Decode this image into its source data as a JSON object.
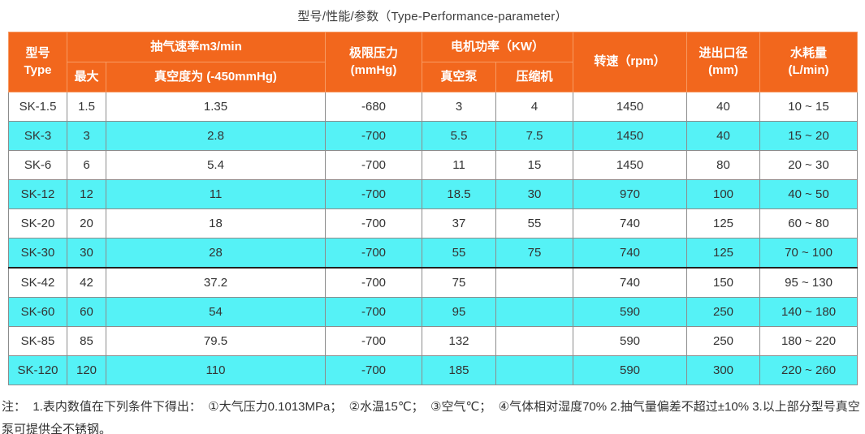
{
  "title": "型号/性能/参数（Type-Performance-parameter）",
  "colors": {
    "header_bg": "#f2671d",
    "header_text": "#ffffff",
    "header_border": "#f79a62",
    "row_alt_bg": "#55f2f6",
    "body_border": "#8c8c8c",
    "body_text": "#333333",
    "thick_divider": "#222222"
  },
  "table": {
    "headers": {
      "type_cn": "型号",
      "type_en": "Type",
      "pumping_speed": "抽气速率m3/min",
      "max": "最大",
      "vacuum_degree": "真空度为 (-450mmHg)",
      "ultimate_pressure_line1": "极限压力",
      "ultimate_pressure_line2": "(mmHg)",
      "motor_power": "电机功率（KW）",
      "vacuum_pump": "真空泵",
      "compressor": "压缩机",
      "speed": "转速（rpm）",
      "port_diameter_line1": "进出口径",
      "port_diameter_line2": "(mm)",
      "water_consumption_line1": "水耗量",
      "water_consumption_line2": "(L/min)"
    },
    "row_keys": [
      "type",
      "max",
      "vacuum",
      "pressure",
      "pump_kw",
      "comp_kw",
      "rpm",
      "port",
      "water"
    ],
    "rows": [
      {
        "type": "SK-1.5",
        "max": "1.5",
        "vacuum": "1.35",
        "pressure": "-680",
        "pump_kw": "3",
        "comp_kw": "4",
        "rpm": "1450",
        "port": "40",
        "water": "10 ~ 15",
        "alt": false,
        "thick_top": false
      },
      {
        "type": "SK-3",
        "max": "3",
        "vacuum": "2.8",
        "pressure": "-700",
        "pump_kw": "5.5",
        "comp_kw": "7.5",
        "rpm": "1450",
        "port": "40",
        "water": "15 ~ 20",
        "alt": true,
        "thick_top": false
      },
      {
        "type": "SK-6",
        "max": "6",
        "vacuum": "5.4",
        "pressure": "-700",
        "pump_kw": "11",
        "comp_kw": "15",
        "rpm": "1450",
        "port": "80",
        "water": "20 ~ 30",
        "alt": false,
        "thick_top": false
      },
      {
        "type": "SK-12",
        "max": "12",
        "vacuum": "11",
        "pressure": "-700",
        "pump_kw": "18.5",
        "comp_kw": "30",
        "rpm": "970",
        "port": "100",
        "water": "40 ~ 50",
        "alt": true,
        "thick_top": false
      },
      {
        "type": "SK-20",
        "max": "20",
        "vacuum": "18",
        "pressure": "-700",
        "pump_kw": "37",
        "comp_kw": "55",
        "rpm": "740",
        "port": "125",
        "water": "60 ~ 80",
        "alt": false,
        "thick_top": false
      },
      {
        "type": "SK-30",
        "max": "30",
        "vacuum": "28",
        "pressure": "-700",
        "pump_kw": "55",
        "comp_kw": "75",
        "rpm": "740",
        "port": "125",
        "water": "70 ~ 100",
        "alt": true,
        "thick_top": false
      },
      {
        "type": "SK-42",
        "max": "42",
        "vacuum": "37.2",
        "pressure": "-700",
        "pump_kw": "75",
        "comp_kw": "",
        "rpm": "740",
        "port": "150",
        "water": "95 ~ 130",
        "alt": false,
        "thick_top": true
      },
      {
        "type": "SK-60",
        "max": "60",
        "vacuum": "54",
        "pressure": "-700",
        "pump_kw": "95",
        "comp_kw": "",
        "rpm": "590",
        "port": "250",
        "water": "140 ~ 180",
        "alt": true,
        "thick_top": false
      },
      {
        "type": "SK-85",
        "max": "85",
        "vacuum": "79.5",
        "pressure": "-700",
        "pump_kw": "132",
        "comp_kw": "",
        "rpm": "590",
        "port": "250",
        "water": "180 ~ 220",
        "alt": false,
        "thick_top": false
      },
      {
        "type": "SK-120",
        "max": "120",
        "vacuum": "110",
        "pressure": "-700",
        "pump_kw": "185",
        "comp_kw": "",
        "rpm": "590",
        "port": "300",
        "water": "220 ~ 260",
        "alt": true,
        "thick_top": false
      }
    ]
  },
  "note": {
    "text": "注：  1.表内数值在下列条件下得出：  ①大气压力0.1013MPa；  ②水温15℃；  ③空气℃；  ④气体相对湿度70% 2.抽气量偏差不超过±10% 3.以上部分型号真空泵可提供全不锈钢。"
  }
}
